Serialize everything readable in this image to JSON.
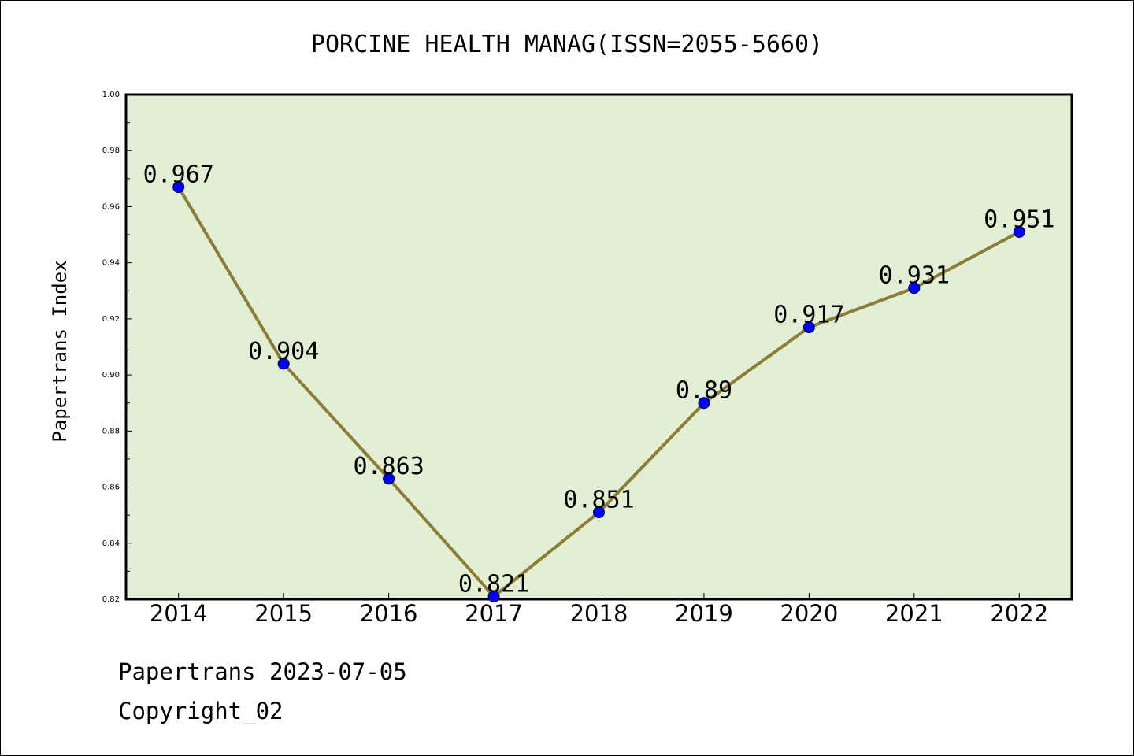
{
  "chart_data": {
    "type": "line",
    "title": "PORCINE HEALTH MANAG(ISSN=2055-5660)",
    "xlabel": "",
    "ylabel": "Papertrans Index",
    "categories": [
      "2014",
      "2015",
      "2016",
      "2017",
      "2018",
      "2019",
      "2020",
      "2021",
      "2022"
    ],
    "values": [
      0.967,
      0.904,
      0.863,
      0.821,
      0.851,
      0.89,
      0.917,
      0.931,
      0.951
    ],
    "data_labels": [
      "0.967",
      "0.904",
      "0.863",
      "0.821",
      "0.851",
      "0.89",
      "0.917",
      "0.931",
      "0.951"
    ],
    "ylim": [
      0.82,
      1.0
    ],
    "yticks": [
      "0.82",
      "0.84",
      "0.86",
      "0.88",
      "0.90",
      "0.92",
      "0.94",
      "0.96",
      "0.98",
      "1.00"
    ],
    "grid": false,
    "colors": {
      "plot_background": "#e2efd4",
      "line": "#8b7d36",
      "marker": "#0000ff"
    }
  },
  "footer": {
    "line1": "Papertrans 2023-07-05",
    "line2": "Copyright_02"
  }
}
